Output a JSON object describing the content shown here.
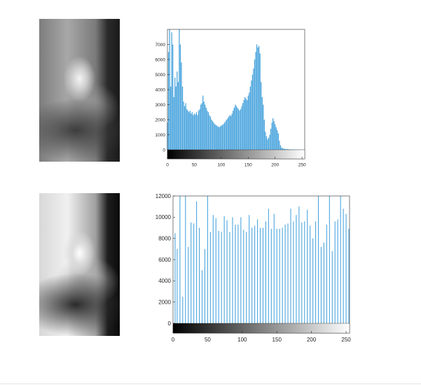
{
  "colors": {
    "bar": "#4da6de",
    "axis": "#262626"
  },
  "images": [
    {
      "name": "original-grayscale-photo",
      "icon": "photo-icon"
    },
    {
      "name": "equalized-grayscale-photo",
      "icon": "photo-icon"
    }
  ],
  "chart_data": [
    {
      "type": "bar",
      "title": "",
      "xlabel": "",
      "ylabel": "",
      "xlim": [
        0,
        255
      ],
      "ylim": [
        0,
        8000
      ],
      "xticks": [
        0,
        50,
        100,
        150,
        200,
        250
      ],
      "yticks": [
        0,
        1000,
        2000,
        3000,
        4000,
        5000,
        6000,
        7000
      ],
      "colorbar": "grayscale",
      "series": [
        {
          "x": [
            0,
            2,
            4,
            6,
            8,
            10,
            12,
            14,
            16,
            18,
            20,
            22,
            24,
            26,
            28,
            30,
            32,
            34,
            36,
            38,
            40,
            42,
            44,
            46,
            48,
            50,
            52,
            54,
            56,
            58,
            60,
            62,
            64,
            66,
            68,
            70,
            72,
            74,
            76,
            78,
            80,
            82,
            84,
            86,
            88,
            90,
            92,
            94,
            96,
            98,
            100,
            102,
            104,
            106,
            108,
            110,
            112,
            114,
            116,
            118,
            120,
            122,
            124,
            126,
            128,
            130,
            132,
            134,
            136,
            138,
            140,
            142,
            144,
            146,
            148,
            150,
            152,
            154,
            156,
            158,
            160,
            162,
            164,
            166,
            168,
            170,
            172,
            174,
            176,
            178,
            180,
            182,
            184,
            186,
            188,
            190,
            192,
            194,
            196,
            198,
            200,
            202,
            204,
            206,
            208,
            210,
            212,
            214,
            216,
            218,
            220,
            222,
            224,
            226,
            228,
            230,
            232,
            234,
            236,
            238,
            240,
            242,
            244,
            246,
            248,
            250,
            252,
            254
          ],
          "values": [
            1800,
            6500,
            8000,
            4200,
            7800,
            7000,
            3500,
            4800,
            4200,
            5200,
            4500,
            8000,
            7000,
            5800,
            4200,
            3200,
            2900,
            3100,
            2700,
            2600,
            2500,
            2600,
            2400,
            2500,
            2300,
            2400,
            2350,
            2500,
            2300,
            2600,
            2700,
            3000,
            3100,
            3600,
            3200,
            3000,
            2800,
            2600,
            2500,
            2300,
            2200,
            2000,
            1900,
            1800,
            1700,
            1650,
            1600,
            1550,
            1500,
            1550,
            1600,
            1650,
            1700,
            1800,
            1900,
            2000,
            2100,
            2200,
            2300,
            2250,
            2400,
            2600,
            2800,
            3000,
            2900,
            2800,
            2700,
            2600,
            2700,
            2900,
            3100,
            3300,
            3500,
            3400,
            3300,
            3600,
            3800,
            4200,
            4600,
            5000,
            5400,
            6000,
            6500,
            7000,
            6800,
            6900,
            6400,
            4500,
            3500,
            3000,
            2000,
            1200,
            900,
            700,
            800,
            1000,
            1400,
            1800,
            2100,
            1900,
            1700,
            1500,
            1300,
            1100,
            600,
            300,
            150,
            100,
            80,
            60,
            50,
            40,
            40,
            30,
            30,
            20,
            20,
            20,
            20,
            15,
            15,
            10,
            10,
            10,
            10,
            10,
            8,
            6
          ]
        }
      ]
    },
    {
      "type": "bar",
      "title": "",
      "xlabel": "",
      "ylabel": "",
      "xlim": [
        0,
        255
      ],
      "ylim": [
        0,
        12000
      ],
      "xticks": [
        0,
        50,
        100,
        150,
        200,
        250
      ],
      "yticks": [
        0,
        2000,
        4000,
        6000,
        8000,
        10000,
        12000
      ],
      "colorbar": "grayscale",
      "series": [
        {
          "x": [
            3,
            6,
            10,
            14,
            18,
            22,
            26,
            30,
            34,
            38,
            42,
            46,
            50,
            54,
            58,
            62,
            66,
            70,
            74,
            78,
            82,
            86,
            90,
            94,
            98,
            102,
            106,
            110,
            114,
            118,
            122,
            126,
            130,
            134,
            138,
            142,
            146,
            150,
            154,
            158,
            162,
            166,
            170,
            174,
            178,
            182,
            186,
            190,
            194,
            198,
            202,
            206,
            210,
            214,
            218,
            222,
            226,
            230,
            234,
            238,
            242,
            246,
            250,
            254
          ],
          "values": [
            8500,
            7000,
            12000,
            2500,
            12000,
            7200,
            9500,
            9400,
            11500,
            9000,
            5000,
            7000,
            12000,
            8600,
            10200,
            9900,
            8700,
            8600,
            10100,
            9700,
            8600,
            10000,
            9300,
            9300,
            10000,
            8800,
            8600,
            10200,
            9000,
            9200,
            9800,
            9000,
            9000,
            9600,
            10800,
            8900,
            10300,
            8900,
            8900,
            9000,
            9300,
            9400,
            10800,
            9600,
            10200,
            11000,
            9500,
            9600,
            10700,
            9200,
            8000,
            9600,
            12000,
            7200,
            7600,
            9300,
            12000,
            6800,
            9600,
            9800,
            12000,
            10800,
            10300,
            8900
          ]
        }
      ]
    }
  ]
}
